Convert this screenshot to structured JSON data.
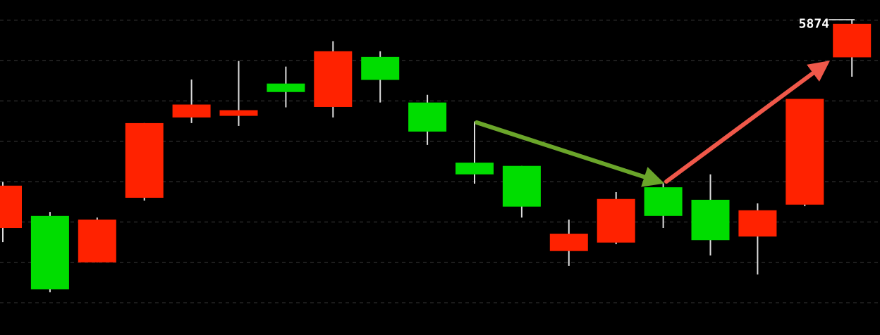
{
  "chart_data": {
    "type": "candlestick",
    "open": [
      5823.5,
      5826.5,
      5815.0,
      5831.0,
      5850.9,
      5851.3,
      5859.3,
      5853.5,
      5865.9,
      5854.6,
      5839.7,
      5838.9,
      5817.8,
      5819.9,
      5833.6,
      5830.5,
      5821.4,
      5829.3,
      5865.8
    ],
    "high": [
      5834.9,
      5827.5,
      5826.1,
      5849.5,
      5860.3,
      5864.9,
      5863.5,
      5869.8,
      5867.3,
      5856.5,
      5849.9,
      5838.9,
      5825.6,
      5832.4,
      5834.7,
      5836.8,
      5829.6,
      5855.5,
      5875.0
    ],
    "low": [
      5820.0,
      5807.6,
      5815.0,
      5830.3,
      5849.5,
      5848.8,
      5853.4,
      5850.9,
      5854.6,
      5844.1,
      5834.5,
      5826.1,
      5814.1,
      5819.5,
      5823.5,
      5816.7,
      5812.0,
      5828.9,
      5861.0
    ],
    "close": [
      5834.0,
      5808.3,
      5825.6,
      5849.5,
      5854.1,
      5852.7,
      5857.2,
      5867.3,
      5860.2,
      5847.4,
      5836.8,
      5828.8,
      5822.1,
      5830.7,
      5826.5,
      5820.5,
      5827.9,
      5855.5,
      5874.1
    ],
    "up_color": "#ff2200",
    "down_color": "#00dd00",
    "wick_color": "#dddddd",
    "ylim": [
      5797,
      5880
    ],
    "yticks": [
      5805,
      5815,
      5825,
      5835,
      5845,
      5855,
      5865,
      5875
    ],
    "grid": true,
    "last_price": 5874
  }
}
